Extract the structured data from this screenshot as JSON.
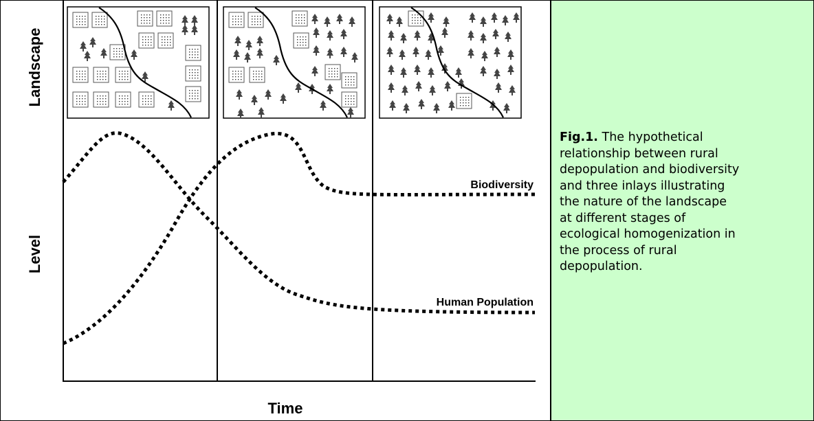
{
  "diagram": {
    "axis_labels": {
      "landscape": "Landscape",
      "level": "Level",
      "time": "Time"
    },
    "curves": {
      "biodiversity": "Biodiversity",
      "human_population": "Human Population"
    },
    "caption": {
      "label": "Fig.1.",
      "lines": [
        "The hypothetical",
        "relationship between rural",
        "depopulation and biodiversity",
        "and three inlays illustrating",
        "the nature of the landscape",
        "at different stages of",
        "ecological homogenization in",
        "the process of rural",
        "depopulation."
      ]
    }
  }
}
